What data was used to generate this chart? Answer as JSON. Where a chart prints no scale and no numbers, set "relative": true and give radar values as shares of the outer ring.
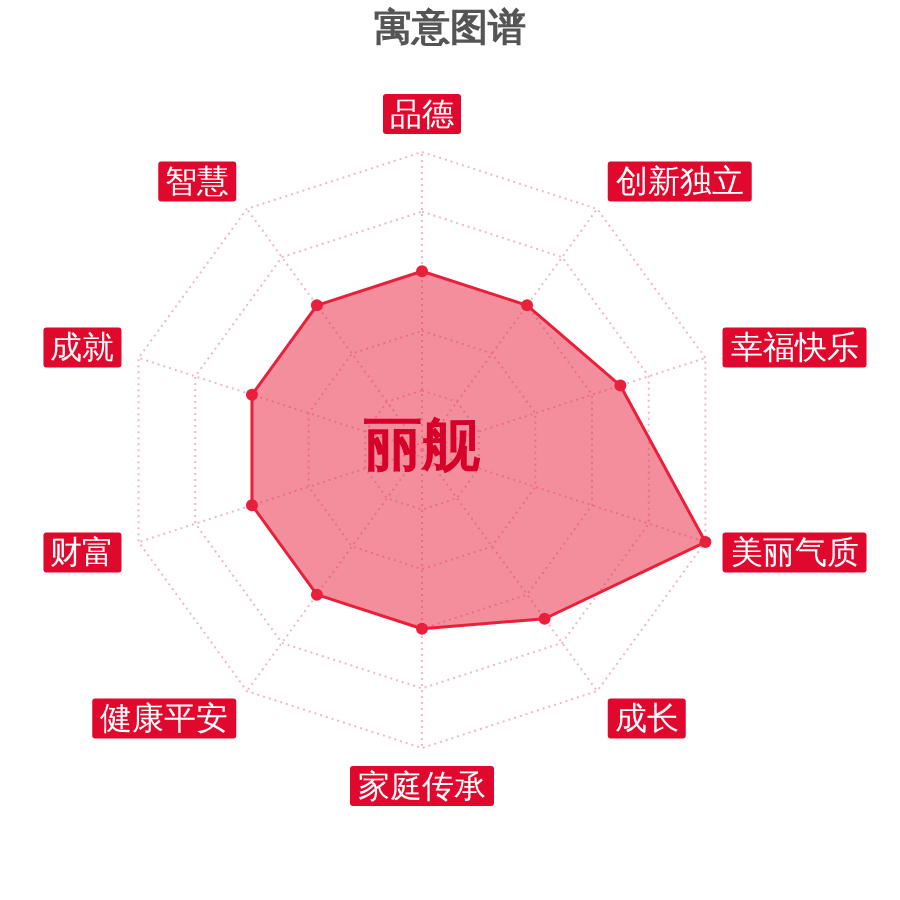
{
  "chart_data": {
    "type": "radar",
    "title": "寓意图谱",
    "categories": [
      "品德",
      "创新独立",
      "幸福快乐",
      "美丽气质",
      "成长",
      "家庭传承",
      "健康平安",
      "财富",
      "成就",
      "智慧"
    ],
    "series": [
      {
        "color": "#e8203c",
        "values": [
          0.6,
          0.6,
          0.7,
          1.0,
          0.7,
          0.6,
          0.6,
          0.6,
          0.6,
          0.6
        ]
      }
    ],
    "relative": true,
    "grid": true,
    "marker": "circle",
    "annotations": [
      "丽舰"
    ]
  }
}
